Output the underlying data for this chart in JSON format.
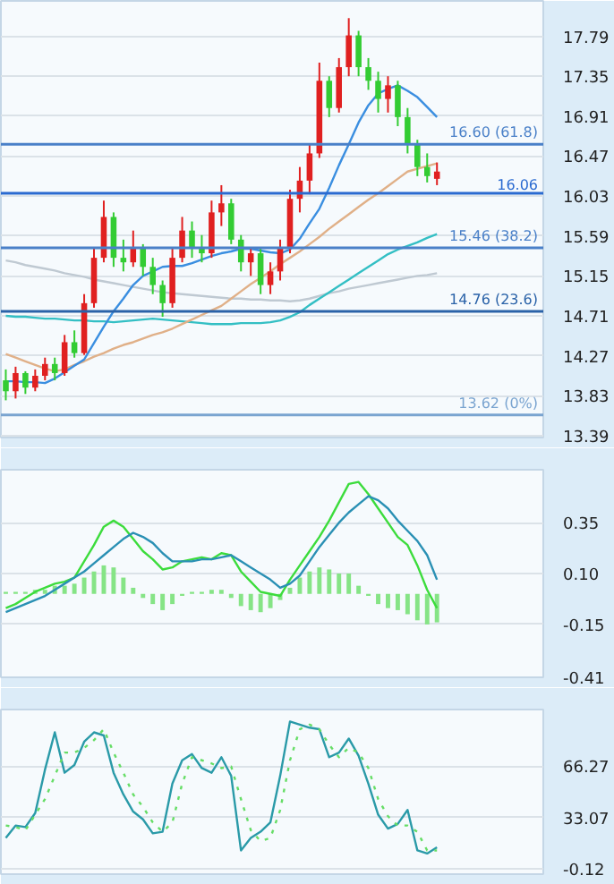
{
  "chart_data": [
    {
      "type": "candlestick",
      "categories": [
        null,
        null,
        null,
        null,
        null,
        null,
        null,
        null,
        null,
        null,
        null,
        null,
        null,
        null,
        null,
        null,
        null,
        null,
        null,
        null,
        null,
        null,
        null,
        null,
        null,
        null,
        null,
        null,
        null,
        null,
        null,
        null,
        null,
        null,
        null,
        null,
        null,
        null,
        null,
        null,
        null,
        null,
        null,
        null,
        null
      ],
      "ohlc": [
        [
          14.0,
          14.12,
          13.78,
          13.88
        ],
        [
          13.88,
          14.15,
          13.8,
          14.08
        ],
        [
          14.08,
          14.1,
          13.85,
          13.92
        ],
        [
          13.92,
          14.12,
          13.88,
          14.05
        ],
        [
          14.05,
          14.25,
          14.0,
          14.18
        ],
        [
          14.18,
          14.25,
          14.0,
          14.08
        ],
        [
          14.08,
          14.5,
          14.05,
          14.42
        ],
        [
          14.42,
          14.55,
          14.25,
          14.3
        ],
        [
          14.3,
          14.95,
          14.28,
          14.85
        ],
        [
          14.85,
          15.45,
          14.8,
          15.35
        ],
        [
          15.35,
          15.98,
          15.3,
          15.8
        ],
        [
          15.8,
          15.85,
          15.25,
          15.35
        ],
        [
          15.35,
          15.55,
          15.2,
          15.3
        ],
        [
          15.3,
          15.65,
          15.25,
          15.45
        ],
        [
          15.45,
          15.5,
          15.15,
          15.25
        ],
        [
          15.25,
          15.35,
          14.95,
          15.05
        ],
        [
          15.05,
          15.1,
          14.7,
          14.85
        ],
        [
          14.85,
          15.45,
          14.8,
          15.35
        ],
        [
          15.35,
          15.8,
          15.3,
          15.65
        ],
        [
          15.65,
          15.75,
          15.35,
          15.45
        ],
        [
          15.45,
          15.6,
          15.3,
          15.4
        ],
        [
          15.4,
          15.98,
          15.35,
          15.85
        ],
        [
          15.85,
          16.15,
          15.7,
          15.95
        ],
        [
          15.95,
          16.0,
          15.5,
          15.55
        ],
        [
          15.55,
          15.6,
          15.2,
          15.3
        ],
        [
          15.3,
          15.45,
          15.15,
          15.4
        ],
        [
          15.4,
          15.45,
          14.95,
          15.05
        ],
        [
          15.05,
          15.3,
          14.95,
          15.2
        ],
        [
          15.2,
          15.55,
          15.1,
          15.45
        ],
        [
          15.45,
          16.1,
          15.4,
          16.0
        ],
        [
          16.0,
          16.35,
          15.85,
          16.2
        ],
        [
          16.2,
          16.6,
          16.05,
          16.5
        ],
        [
          16.5,
          17.5,
          16.45,
          17.3
        ],
        [
          17.3,
          17.35,
          16.9,
          17.0
        ],
        [
          17.0,
          17.55,
          16.95,
          17.45
        ],
        [
          17.45,
          17.99,
          17.35,
          17.8
        ],
        [
          17.8,
          17.85,
          17.35,
          17.45
        ],
        [
          17.45,
          17.55,
          17.2,
          17.3
        ],
        [
          17.3,
          17.4,
          16.95,
          17.1
        ],
        [
          17.1,
          17.35,
          16.95,
          17.25
        ],
        [
          17.25,
          17.3,
          16.8,
          16.9
        ],
        [
          16.9,
          17.0,
          16.5,
          16.6
        ],
        [
          16.6,
          16.65,
          16.25,
          16.35
        ],
        [
          16.35,
          16.5,
          16.18,
          16.25
        ],
        [
          16.22,
          16.4,
          16.15,
          16.3
        ]
      ],
      "colors": [
        "#33cc33",
        "#e02020",
        "#33cc33",
        "#e02020",
        "#e02020",
        "#33cc33",
        "#e02020",
        "#33cc33",
        "#e02020",
        "#e02020",
        "#e02020",
        "#33cc33",
        "#33cc33",
        "#e02020",
        "#33cc33",
        "#33cc33",
        "#33cc33",
        "#e02020",
        "#e02020",
        "#33cc33",
        "#33cc33",
        "#e02020",
        "#e02020",
        "#33cc33",
        "#33cc33",
        "#e02020",
        "#33cc33",
        "#e02020",
        "#e02020",
        "#e02020",
        "#e02020",
        "#e02020",
        "#e02020",
        "#33cc33",
        "#e02020",
        "#e02020",
        "#33cc33",
        "#33cc33",
        "#33cc33",
        "#e02020",
        "#33cc33",
        "#33cc33",
        "#33cc33",
        "#33cc33",
        "#e02020"
      ],
      "series": [
        {
          "type": "line",
          "color": "#bfc9d2",
          "values": [
            15.32,
            15.3,
            15.27,
            15.25,
            15.23,
            15.21,
            15.18,
            15.16,
            15.14,
            15.11,
            15.09,
            15.07,
            15.05,
            15.03,
            15.01,
            14.99,
            14.97,
            14.96,
            14.95,
            14.94,
            14.93,
            14.92,
            14.91,
            14.9,
            14.9,
            14.89,
            14.89,
            14.88,
            14.88,
            14.87,
            14.88,
            14.9,
            14.93,
            14.96,
            14.98,
            15.01,
            15.03,
            15.05,
            15.07,
            15.09,
            15.11,
            15.13,
            15.15,
            15.16,
            15.18
          ]
        },
        {
          "type": "line",
          "color": "#33bfc4",
          "values": [
            14.71,
            14.7,
            14.7,
            14.69,
            14.68,
            14.68,
            14.67,
            14.66,
            14.66,
            14.65,
            14.65,
            14.64,
            14.65,
            14.66,
            14.67,
            14.68,
            14.67,
            14.66,
            14.65,
            14.64,
            14.63,
            14.62,
            14.62,
            14.62,
            14.63,
            14.63,
            14.63,
            14.64,
            14.66,
            14.7,
            14.75,
            14.83,
            14.9,
            14.97,
            15.04,
            15.11,
            15.18,
            15.25,
            15.32,
            15.39,
            15.44,
            15.48,
            15.52,
            15.57,
            15.61
          ]
        },
        {
          "type": "line",
          "color": "#e0b088",
          "values": [
            14.29,
            14.25,
            14.21,
            14.17,
            14.13,
            14.1,
            14.12,
            14.17,
            14.21,
            14.26,
            14.3,
            14.35,
            14.39,
            14.42,
            14.46,
            14.5,
            14.53,
            14.57,
            14.62,
            14.67,
            14.72,
            14.77,
            14.82,
            14.9,
            14.98,
            15.06,
            15.13,
            15.2,
            15.28,
            15.35,
            15.42,
            15.5,
            15.58,
            15.67,
            15.75,
            15.83,
            15.91,
            15.99,
            16.06,
            16.14,
            16.22,
            16.3,
            16.33,
            16.36,
            16.39
          ]
        },
        {
          "type": "line",
          "color": "#3a8ee0",
          "values": [
            13.99,
            13.99,
            13.98,
            13.98,
            13.97,
            14.02,
            14.09,
            14.16,
            14.23,
            14.41,
            14.59,
            14.76,
            14.9,
            15.05,
            15.15,
            15.2,
            15.25,
            15.26,
            15.26,
            15.29,
            15.33,
            15.37,
            15.4,
            15.42,
            15.45,
            15.45,
            15.43,
            15.41,
            15.4,
            15.44,
            15.56,
            15.73,
            15.89,
            16.12,
            16.37,
            16.6,
            16.84,
            17.03,
            17.16,
            17.21,
            17.25,
            17.19,
            17.12,
            17.01,
            16.9
          ]
        }
      ],
      "ref_lines": [
        {
          "axis": "y",
          "value": 16.6,
          "label": "16.60 (61.8)",
          "color": "#4a80c8"
        },
        {
          "axis": "y",
          "value": 16.06,
          "label": "16.06",
          "color": "#2a6ad0"
        },
        {
          "axis": "y",
          "value": 15.46,
          "label": "15.46 (38.2)",
          "color": "#4a80c8"
        },
        {
          "axis": "y",
          "value": 14.76,
          "label": "14.76 (23.6)",
          "color": "#2a62a8"
        },
        {
          "axis": "y",
          "value": 13.62,
          "label": "13.62 (0%)",
          "color": "#7aa4d0"
        }
      ],
      "ylim": [
        13.37,
        18.18
      ],
      "yticks": [
        17.79,
        17.35,
        16.91,
        16.47,
        16.03,
        15.59,
        15.15,
        14.71,
        14.27,
        13.83,
        13.39
      ],
      "grid": "y",
      "tick_labels": "y"
    },
    {
      "type": "line",
      "categories": [
        null,
        null,
        null,
        null,
        null,
        null,
        null,
        null,
        null,
        null,
        null,
        null,
        null,
        null,
        null,
        null,
        null,
        null,
        null,
        null,
        null,
        null,
        null,
        null,
        null,
        null,
        null,
        null,
        null,
        null,
        null,
        null,
        null,
        null,
        null,
        null,
        null,
        null,
        null,
        null,
        null,
        null,
        null,
        null,
        null
      ],
      "series": [
        {
          "type": "bar",
          "color": "#86e486",
          "values": [
            0.01,
            0.01,
            0.01,
            0.02,
            0.02,
            0.04,
            0.04,
            0.05,
            0.08,
            0.11,
            0.14,
            0.13,
            0.08,
            0.03,
            -0.02,
            -0.05,
            -0.08,
            -0.05,
            -0.01,
            0.01,
            0.01,
            0.02,
            0.02,
            -0.02,
            -0.06,
            -0.08,
            -0.09,
            -0.07,
            -0.03,
            0.03,
            0.08,
            0.11,
            0.13,
            0.12,
            0.1,
            0.1,
            0.04,
            -0.01,
            -0.05,
            -0.07,
            -0.08,
            -0.1,
            -0.13,
            -0.15,
            -0.14
          ]
        },
        {
          "type": "line",
          "color": "#3cdc3c",
          "values": [
            -0.07,
            -0.05,
            -0.02,
            0.01,
            0.03,
            0.05,
            0.06,
            0.08,
            0.16,
            0.24,
            0.33,
            0.36,
            0.33,
            0.27,
            0.21,
            0.17,
            0.12,
            0.13,
            0.16,
            0.17,
            0.18,
            0.17,
            0.2,
            0.19,
            0.11,
            0.06,
            0.01,
            0.0,
            -0.01,
            0.07,
            0.14,
            0.21,
            0.28,
            0.36,
            0.45,
            0.54,
            0.55,
            0.49,
            0.42,
            0.35,
            0.28,
            0.24,
            0.14,
            0.02,
            -0.07
          ]
        },
        {
          "type": "line",
          "color": "#2a90b4",
          "values": [
            -0.09,
            -0.07,
            -0.05,
            -0.03,
            -0.01,
            0.02,
            0.05,
            0.08,
            0.11,
            0.15,
            0.19,
            0.23,
            0.27,
            0.3,
            0.28,
            0.25,
            0.2,
            0.16,
            0.16,
            0.16,
            0.17,
            0.17,
            0.18,
            0.19,
            0.16,
            0.13,
            0.1,
            0.07,
            0.03,
            0.05,
            0.09,
            0.16,
            0.23,
            0.29,
            0.35,
            0.4,
            0.44,
            0.48,
            0.46,
            0.42,
            0.36,
            0.31,
            0.26,
            0.19,
            0.07
          ]
        }
      ],
      "ylim": [
        -0.41,
        0.61
      ],
      "yticks": [
        0.35,
        {
          "value": 0.1,
          "label": "0.10"
        },
        -0.15,
        -0.41
      ],
      "grid": "y",
      "tick_labels": "y"
    },
    {
      "type": "line",
      "categories": [
        null,
        null,
        null,
        null,
        null,
        null,
        null,
        null,
        null,
        null,
        null,
        null,
        null,
        null,
        null,
        null,
        null,
        null,
        null,
        null,
        null,
        null,
        null,
        null,
        null,
        null,
        null,
        null,
        null,
        null,
        null,
        null,
        null,
        null,
        null,
        null,
        null,
        null,
        null,
        null,
        null,
        null,
        null,
        null,
        null
      ],
      "series": [
        {
          "type": "line",
          "color": "#2a9aa8",
          "values": [
            20,
            28,
            27,
            36,
            64,
            88,
            62,
            67,
            82,
            88,
            86,
            62,
            48,
            37,
            32,
            23,
            24,
            55,
            70,
            74,
            65,
            62,
            72,
            60,
            12,
            20,
            24,
            30,
            60,
            95,
            93,
            91,
            90,
            72,
            75,
            84,
            73,
            55,
            35,
            26,
            29,
            38,
            12,
            10,
            14
          ]
        },
        {
          "type": "line",
          "color": "#66dd66",
          "line_style": "dotted",
          "values": [
            28,
            27,
            25,
            35,
            45,
            60,
            75,
            75,
            78,
            83,
            90,
            75,
            62,
            48,
            40,
            30,
            24,
            30,
            55,
            72,
            70,
            68,
            65,
            66,
            45,
            25,
            18,
            20,
            38,
            70,
            90,
            93,
            90,
            80,
            72,
            78,
            75,
            65,
            45,
            34,
            28,
            28,
            24,
            12,
            12
          ]
        }
      ],
      "ylim": [
        -3.3,
        102.7
      ],
      "yticks": [
        66.27,
        33.07,
        -0.12
      ],
      "grid": "y",
      "tick_labels": "y"
    }
  ]
}
